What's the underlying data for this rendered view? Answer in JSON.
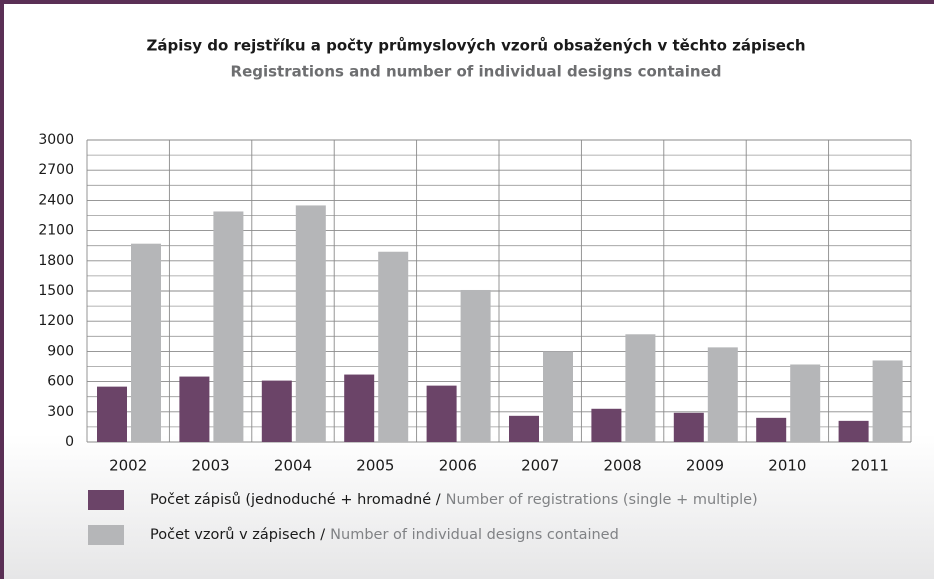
{
  "chart_data": {
    "type": "bar",
    "title": "Zápisy do rejstříku a počty průmyslových vzorů obsažených v těchto zápisech",
    "subtitle": "Registrations and number of individual designs contained",
    "categories": [
      "2002",
      "2003",
      "2004",
      "2005",
      "2006",
      "2007",
      "2008",
      "2009",
      "2010",
      "2011"
    ],
    "series": [
      {
        "name": "Počet zápisů (jednoduché + hromadné /",
        "name_en": "Number of registrations (single + multiple)",
        "color": "#6b4468",
        "values": [
          550,
          650,
          610,
          670,
          560,
          260,
          330,
          290,
          240,
          210
        ]
      },
      {
        "name": "Počet vzorů v zápisech /",
        "name_en": "Number of individual designs contained",
        "color": "#b5b6b8",
        "values": [
          1970,
          2290,
          2350,
          1890,
          1510,
          900,
          1070,
          940,
          770,
          810
        ]
      }
    ],
    "ylim": [
      0,
      3000
    ],
    "yticks": [
      0,
      300,
      600,
      900,
      1200,
      1500,
      1800,
      2100,
      2400,
      2700,
      3000
    ],
    "yminor": [
      150,
      450,
      750,
      1050,
      1350,
      1650,
      1950,
      2250,
      2550,
      2850
    ],
    "grid": true
  }
}
